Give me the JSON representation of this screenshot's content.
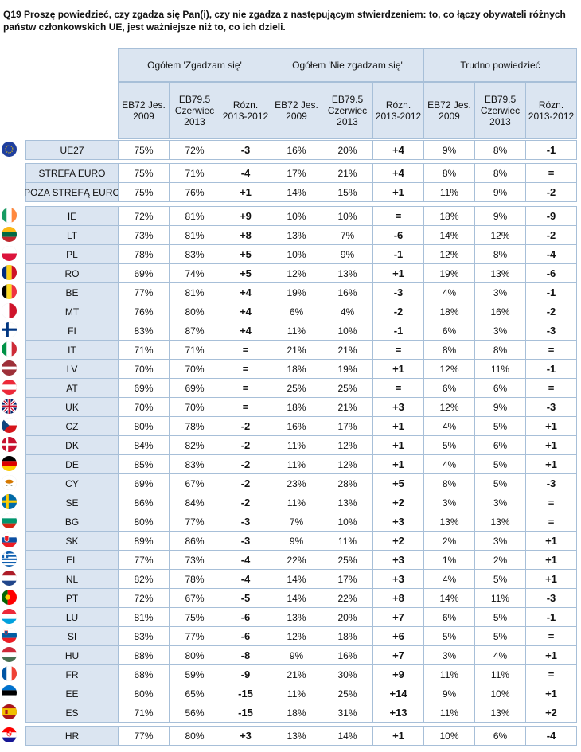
{
  "question": "Q19 Proszę powiedzieć, czy zgadza się Pan(i), czy nie zgadza z następującym stwierdzeniem: to, co łączy obywateli różnych państw członkowskich UE, jest ważniejsze niż to, co ich dzieli.",
  "groups": [
    "Ogółem 'Zgadzam się'",
    "Ogółem 'Nie zgadzam się'",
    "Trudno powiedzieć"
  ],
  "subheaders": [
    "EB72 Jes. 2009",
    "EB79.5 Czerwiec 2013",
    "Rózn. 2013-2012"
  ],
  "rows": [
    {
      "label": "UE27",
      "flag": "eu",
      "cells": [
        "75%",
        "72%",
        "-3",
        "16%",
        "20%",
        "+4",
        "9%",
        "8%",
        "-1"
      ]
    },
    {
      "label": "STREFA EURO",
      "flag": "",
      "cells": [
        "75%",
        "71%",
        "-4",
        "17%",
        "21%",
        "+4",
        "8%",
        "8%",
        "="
      ]
    },
    {
      "label": "POZA STREFĄ EURO",
      "flag": "",
      "cells": [
        "75%",
        "76%",
        "+1",
        "14%",
        "15%",
        "+1",
        "11%",
        "9%",
        "-2"
      ]
    },
    {
      "label": "IE",
      "flag": "ie",
      "cells": [
        "72%",
        "81%",
        "+9",
        "10%",
        "10%",
        "=",
        "18%",
        "9%",
        "-9"
      ]
    },
    {
      "label": "LT",
      "flag": "lt",
      "cells": [
        "73%",
        "81%",
        "+8",
        "13%",
        "7%",
        "-6",
        "14%",
        "12%",
        "-2"
      ]
    },
    {
      "label": "PL",
      "flag": "pl",
      "cells": [
        "78%",
        "83%",
        "+5",
        "10%",
        "9%",
        "-1",
        "12%",
        "8%",
        "-4"
      ]
    },
    {
      "label": "RO",
      "flag": "ro",
      "cells": [
        "69%",
        "74%",
        "+5",
        "12%",
        "13%",
        "+1",
        "19%",
        "13%",
        "-6"
      ]
    },
    {
      "label": "BE",
      "flag": "be",
      "cells": [
        "77%",
        "81%",
        "+4",
        "19%",
        "16%",
        "-3",
        "4%",
        "3%",
        "-1"
      ]
    },
    {
      "label": "MT",
      "flag": "mt",
      "cells": [
        "76%",
        "80%",
        "+4",
        "6%",
        "4%",
        "-2",
        "18%",
        "16%",
        "-2"
      ]
    },
    {
      "label": "FI",
      "flag": "fi",
      "cells": [
        "83%",
        "87%",
        "+4",
        "11%",
        "10%",
        "-1",
        "6%",
        "3%",
        "-3"
      ]
    },
    {
      "label": "IT",
      "flag": "it",
      "cells": [
        "71%",
        "71%",
        "=",
        "21%",
        "21%",
        "=",
        "8%",
        "8%",
        "="
      ]
    },
    {
      "label": "LV",
      "flag": "lv",
      "cells": [
        "70%",
        "70%",
        "=",
        "18%",
        "19%",
        "+1",
        "12%",
        "11%",
        "-1"
      ]
    },
    {
      "label": "AT",
      "flag": "at",
      "cells": [
        "69%",
        "69%",
        "=",
        "25%",
        "25%",
        "=",
        "6%",
        "6%",
        "="
      ]
    },
    {
      "label": "UK",
      "flag": "uk",
      "cells": [
        "70%",
        "70%",
        "=",
        "18%",
        "21%",
        "+3",
        "12%",
        "9%",
        "-3"
      ]
    },
    {
      "label": "CZ",
      "flag": "cz",
      "cells": [
        "80%",
        "78%",
        "-2",
        "16%",
        "17%",
        "+1",
        "4%",
        "5%",
        "+1"
      ]
    },
    {
      "label": "DK",
      "flag": "dk",
      "cells": [
        "84%",
        "82%",
        "-2",
        "11%",
        "12%",
        "+1",
        "5%",
        "6%",
        "+1"
      ]
    },
    {
      "label": "DE",
      "flag": "de",
      "cells": [
        "85%",
        "83%",
        "-2",
        "11%",
        "12%",
        "+1",
        "4%",
        "5%",
        "+1"
      ]
    },
    {
      "label": "CY",
      "flag": "cy",
      "cells": [
        "69%",
        "67%",
        "-2",
        "23%",
        "28%",
        "+5",
        "8%",
        "5%",
        "-3"
      ]
    },
    {
      "label": "SE",
      "flag": "se",
      "cells": [
        "86%",
        "84%",
        "-2",
        "11%",
        "13%",
        "+2",
        "3%",
        "3%",
        "="
      ]
    },
    {
      "label": "BG",
      "flag": "bg",
      "cells": [
        "80%",
        "77%",
        "-3",
        "7%",
        "10%",
        "+3",
        "13%",
        "13%",
        "="
      ]
    },
    {
      "label": "SK",
      "flag": "sk",
      "cells": [
        "89%",
        "86%",
        "-3",
        "9%",
        "11%",
        "+2",
        "2%",
        "3%",
        "+1"
      ]
    },
    {
      "label": "EL",
      "flag": "el",
      "cells": [
        "77%",
        "73%",
        "-4",
        "22%",
        "25%",
        "+3",
        "1%",
        "2%",
        "+1"
      ]
    },
    {
      "label": "NL",
      "flag": "nl",
      "cells": [
        "82%",
        "78%",
        "-4",
        "14%",
        "17%",
        "+3",
        "4%",
        "5%",
        "+1"
      ]
    },
    {
      "label": "PT",
      "flag": "pt",
      "cells": [
        "72%",
        "67%",
        "-5",
        "14%",
        "22%",
        "+8",
        "14%",
        "11%",
        "-3"
      ]
    },
    {
      "label": "LU",
      "flag": "lu",
      "cells": [
        "81%",
        "75%",
        "-6",
        "13%",
        "20%",
        "+7",
        "6%",
        "5%",
        "-1"
      ]
    },
    {
      "label": "SI",
      "flag": "si",
      "cells": [
        "83%",
        "77%",
        "-6",
        "12%",
        "18%",
        "+6",
        "5%",
        "5%",
        "="
      ]
    },
    {
      "label": "HU",
      "flag": "hu",
      "cells": [
        "88%",
        "80%",
        "-8",
        "9%",
        "16%",
        "+7",
        "3%",
        "4%",
        "+1"
      ]
    },
    {
      "label": "FR",
      "flag": "fr",
      "cells": [
        "68%",
        "59%",
        "-9",
        "21%",
        "30%",
        "+9",
        "11%",
        "11%",
        "="
      ]
    },
    {
      "label": "EE",
      "flag": "ee",
      "cells": [
        "80%",
        "65%",
        "-15",
        "11%",
        "25%",
        "+14",
        "9%",
        "10%",
        "+1"
      ]
    },
    {
      "label": "ES",
      "flag": "es",
      "cells": [
        "71%",
        "56%",
        "-15",
        "18%",
        "31%",
        "+13",
        "11%",
        "13%",
        "+2"
      ]
    },
    {
      "label": "HR",
      "flag": "hr",
      "cells": [
        "77%",
        "80%",
        "+3",
        "13%",
        "14%",
        "+1",
        "10%",
        "6%",
        "-4"
      ]
    }
  ],
  "colors": {
    "header_bg": "#dbe5f1",
    "border": "#a7bfd8"
  }
}
